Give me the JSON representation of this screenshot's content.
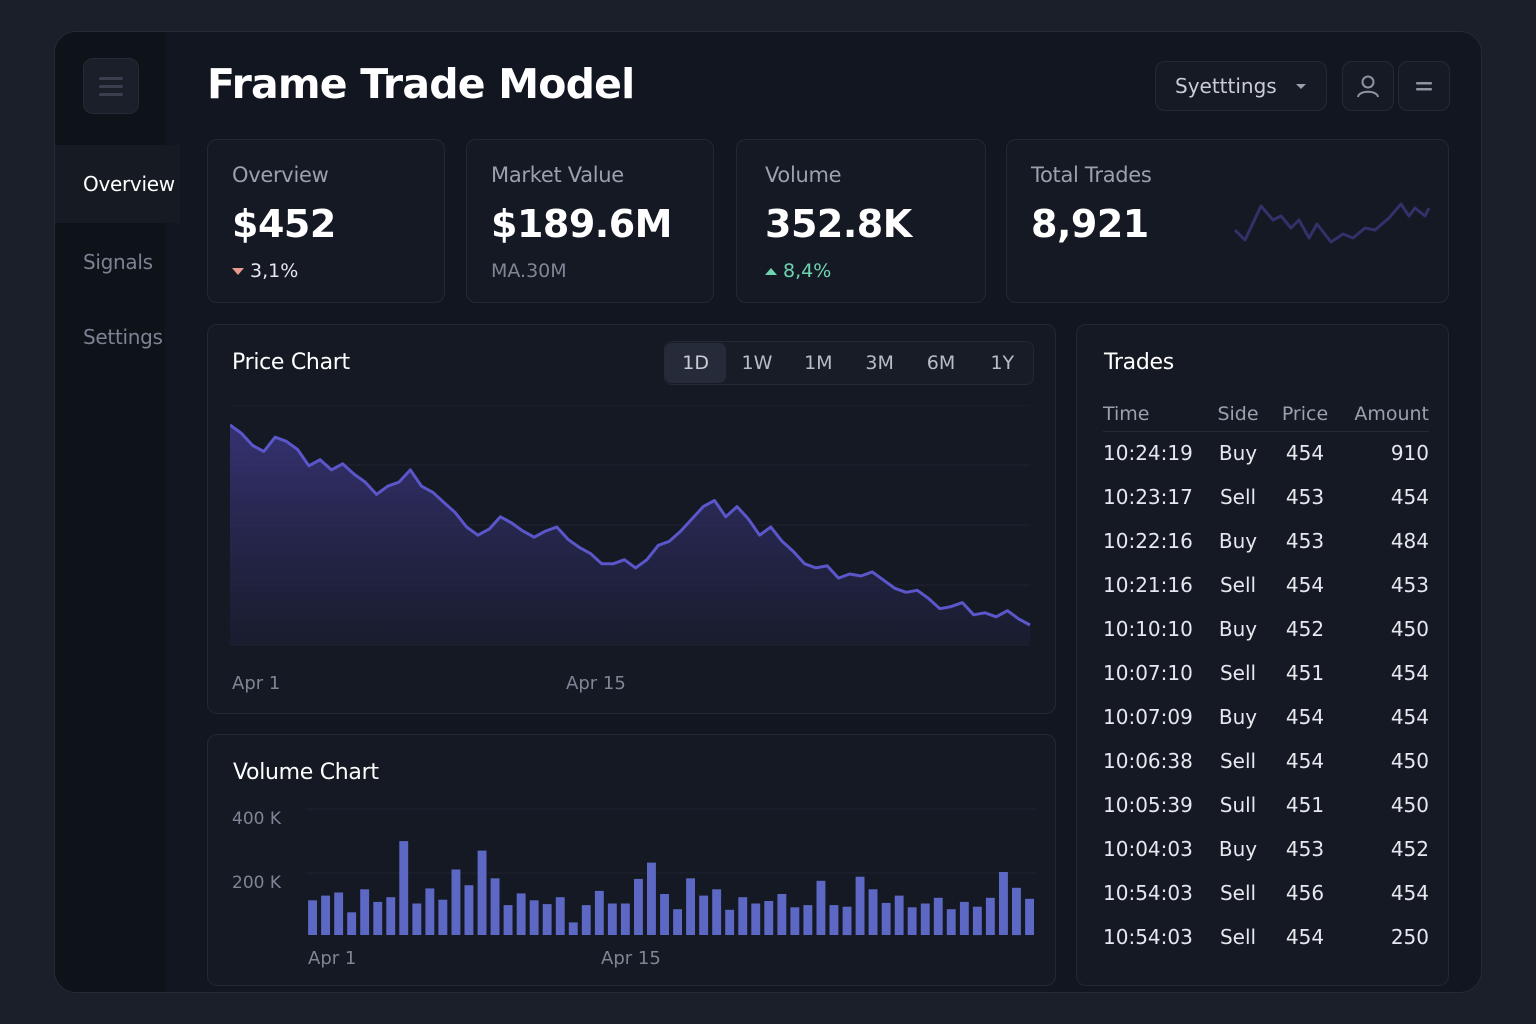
{
  "app": {
    "title": "Frame Trade Model"
  },
  "sidebar": {
    "items": [
      {
        "label": "Overview",
        "active": true
      },
      {
        "label": "Signals",
        "active": false
      },
      {
        "label": "Settings",
        "active": false
      }
    ]
  },
  "header": {
    "settings_label": "Syetttings",
    "icons": [
      "user-icon",
      "menu-icon"
    ]
  },
  "stats": [
    {
      "label": "Overview",
      "value": "$452",
      "change": "3,1%",
      "direction": "down"
    },
    {
      "label": "Market Value",
      "value": "$189.6M",
      "sub": "MA.30M"
    },
    {
      "label": "Volume",
      "value": "352.8K",
      "change": "8,4%",
      "direction": "up"
    },
    {
      "label": "Total Trades",
      "value": "8,921"
    }
  ],
  "price_chart": {
    "title": "Price Chart",
    "ranges": [
      "1D",
      "1W",
      "1M",
      "3M",
      "6M",
      "1Y"
    ],
    "active_range": "1D",
    "x_labels": [
      "Apr 1",
      "Apr 15"
    ]
  },
  "volume_chart": {
    "title": "Volume Chart",
    "y_labels": [
      "400 K",
      "200 K"
    ],
    "x_labels": [
      "Apr 1",
      "Apr 15"
    ]
  },
  "trades": {
    "title": "Trades",
    "columns": [
      "Time",
      "Side",
      "Price",
      "Amount"
    ],
    "rows": [
      [
        "10:24:19",
        "Buy",
        "454",
        "910"
      ],
      [
        "10:23:17",
        "Sell",
        "453",
        "454"
      ],
      [
        "10:22:16",
        "Buy",
        "453",
        "484"
      ],
      [
        "10:21:16",
        "Sell",
        "454",
        "453"
      ],
      [
        "10:10:10",
        "Buy",
        "452",
        "450"
      ],
      [
        "10:07:10",
        "Sell",
        "451",
        "454"
      ],
      [
        "10:07:09",
        "Buy",
        "454",
        "454"
      ],
      [
        "10:06:38",
        "Sell",
        "454",
        "450"
      ],
      [
        "10:05:39",
        "Sull",
        "451",
        "450"
      ],
      [
        "10:04:03",
        "Buy",
        "453",
        "452"
      ],
      [
        "10:54:03",
        "Sell",
        "456",
        "454"
      ],
      [
        "10:54:03",
        "Sell",
        "454",
        "250"
      ]
    ],
    "row_colors": [
      "buy",
      "sell",
      "buy",
      "sell",
      "buy",
      "sell",
      "buy",
      "sell",
      "buy",
      "buy",
      "sell",
      "buy"
    ]
  },
  "chart_data": [
    {
      "type": "area",
      "title": "Price Chart",
      "x_labels": [
        "Apr 1",
        "Apr 15"
      ],
      "values": [
        100,
        96,
        90,
        87,
        94,
        92,
        88,
        80,
        83,
        78,
        81,
        76,
        72,
        66,
        70,
        72,
        78,
        70,
        67,
        62,
        57,
        50,
        46,
        49,
        55,
        52,
        48,
        45,
        48,
        50,
        44,
        40,
        37,
        32,
        32,
        34,
        30,
        34,
        41,
        43,
        48,
        54,
        60,
        63,
        55,
        60,
        54,
        46,
        50,
        43,
        38,
        32,
        30,
        31,
        25,
        27,
        26,
        28,
        24,
        20,
        18,
        19,
        15,
        10,
        11,
        13,
        7,
        8,
        6,
        9,
        5,
        2
      ],
      "color": "#5b56c9"
    },
    {
      "type": "bar",
      "title": "Volume Chart",
      "y_labels": [
        "400 K",
        "200 K"
      ],
      "x_labels": [
        "Apr 1",
        "Apr 15"
      ],
      "ylim": [
        0,
        400
      ],
      "values": [
        110,
        125,
        135,
        72,
        145,
        105,
        120,
        298,
        100,
        148,
        112,
        208,
        158,
        268,
        180,
        95,
        132,
        110,
        98,
        120,
        40,
        95,
        140,
        100,
        100,
        178,
        230,
        130,
        82,
        180,
        125,
        145,
        80,
        120,
        100,
        108,
        130,
        88,
        95,
        172,
        95,
        90,
        185,
        145,
        102,
        125,
        88,
        100,
        118,
        82,
        105,
        90,
        118,
        200,
        150,
        115
      ],
      "color": "#5c68c4"
    }
  ],
  "colors": {
    "accent": "#5b56c9",
    "up": "#6fd3b0",
    "down": "#e79b8c"
  }
}
